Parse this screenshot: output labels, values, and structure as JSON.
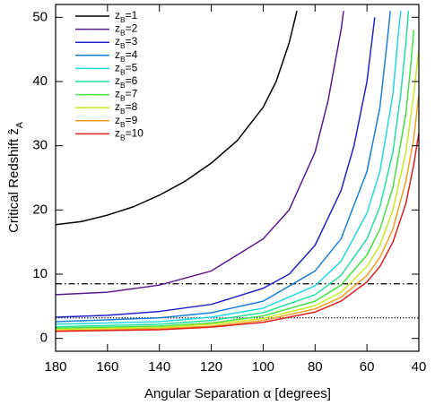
{
  "chart_data": {
    "type": "line",
    "xlabel": "Angular Separation α [degrees]",
    "ylabel": "Critical Redshift ẑA",
    "xlim": [
      180,
      40
    ],
    "ylim": [
      -2,
      52
    ],
    "xticks": [
      180,
      160,
      140,
      120,
      100,
      80,
      60,
      40
    ],
    "yticks": [
      0,
      10,
      20,
      30,
      40,
      50
    ],
    "legend": "upper-left",
    "hlines": [
      {
        "value": 8.5,
        "style": "dashdot",
        "color": "#000000"
      },
      {
        "value": 3.2,
        "style": "dotted",
        "color": "#000000"
      }
    ],
    "series": [
      {
        "name": "zB=1",
        "color": "#000000",
        "x": [
          180,
          170,
          160,
          150,
          140,
          130,
          120,
          110,
          100,
          95,
          90,
          87
        ],
        "values": [
          17.7,
          18.2,
          19.2,
          20.5,
          22.3,
          24.5,
          27.3,
          30.8,
          36,
          40,
          46,
          51
        ]
      },
      {
        "name": "zB=2",
        "color": "#5a1a8c",
        "x": [
          180,
          160,
          140,
          120,
          100,
          90,
          80,
          75,
          70,
          69
        ],
        "values": [
          6.8,
          7.2,
          8.3,
          10.5,
          15.5,
          20,
          29,
          37,
          48,
          51
        ]
      },
      {
        "name": "zB=3",
        "color": "#2222cc",
        "x": [
          180,
          160,
          140,
          120,
          100,
          90,
          80,
          70,
          65,
          60,
          57
        ],
        "values": [
          3.3,
          3.6,
          4.2,
          5.3,
          7.8,
          10,
          14.5,
          23,
          30,
          40,
          50
        ]
      },
      {
        "name": "zB=4",
        "color": "#1a7fd8",
        "x": [
          180,
          140,
          120,
          100,
          80,
          70,
          60,
          55,
          52,
          51
        ],
        "values": [
          2.6,
          3.2,
          4,
          5.8,
          10.5,
          15.5,
          26,
          36,
          47,
          51
        ]
      },
      {
        "name": "zB=5",
        "color": "#22d8e6",
        "x": [
          180,
          140,
          120,
          100,
          80,
          70,
          60,
          55,
          50,
          48,
          47
        ],
        "values": [
          2.2,
          2.6,
          3.3,
          4.7,
          8.2,
          12,
          19.5,
          26,
          38,
          47,
          51
        ]
      },
      {
        "name": "zB=6",
        "color": "#22e0a0",
        "x": [
          180,
          140,
          120,
          100,
          80,
          70,
          60,
          55,
          50,
          47,
          45,
          44
        ],
        "values": [
          1.8,
          2.2,
          2.8,
          4,
          6.8,
          9.8,
          15.5,
          20.5,
          29,
          38,
          46,
          51
        ]
      },
      {
        "name": "zB=7",
        "color": "#44e044",
        "x": [
          180,
          140,
          120,
          100,
          80,
          70,
          60,
          55,
          50,
          45,
          43,
          42
        ],
        "values": [
          1.6,
          1.9,
          2.4,
          3.5,
          5.8,
          8.3,
          13,
          17,
          23.5,
          35,
          43,
          48
        ]
      },
      {
        "name": "zB=8",
        "color": "#c8ec22",
        "x": [
          180,
          140,
          120,
          100,
          80,
          70,
          60,
          55,
          50,
          45,
          42,
          40
        ],
        "values": [
          1.4,
          1.7,
          2.2,
          3.1,
          5.1,
          7.2,
          11.2,
          14.5,
          20,
          29,
          38,
          45
        ]
      },
      {
        "name": "zB=9",
        "color": "#f0a020",
        "x": [
          180,
          140,
          120,
          100,
          80,
          70,
          60,
          55,
          50,
          45,
          42,
          40
        ],
        "values": [
          1.2,
          1.5,
          1.9,
          2.8,
          4.6,
          6.4,
          9.8,
          12.6,
          17,
          24.5,
          31,
          38
        ]
      },
      {
        "name": "zB=10",
        "color": "#e02020",
        "x": [
          180,
          140,
          120,
          100,
          80,
          70,
          60,
          55,
          50,
          45,
          42,
          40
        ],
        "values": [
          1.1,
          1.35,
          1.75,
          2.5,
          4.1,
          5.8,
          8.8,
          11.2,
          15,
          21,
          27,
          32
        ]
      }
    ]
  }
}
